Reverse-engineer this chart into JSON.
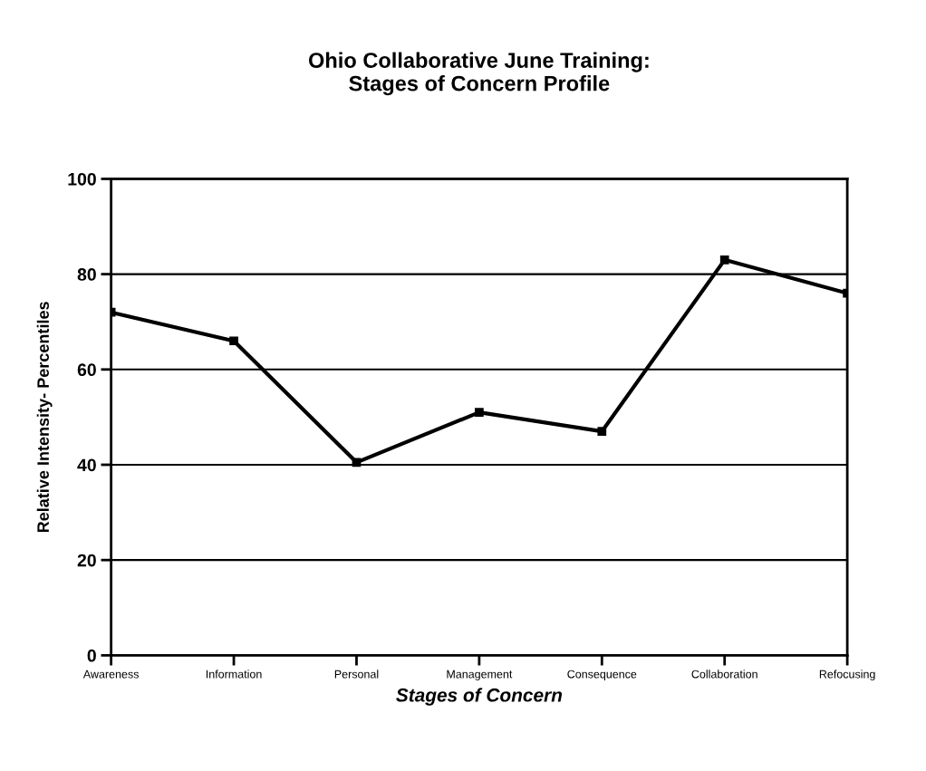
{
  "chart_data": {
    "type": "line",
    "title": "Ohio Collaborative June Training:\nStages of Concern Profile",
    "xlabel": "Stages of Concern",
    "ylabel": "Relative Intensity- Percentiles",
    "categories": [
      "Awareness",
      "Information",
      "Personal",
      "Management",
      "Consequence",
      "Collaboration",
      "Refocusing"
    ],
    "series": [
      {
        "color": "#000000",
        "values": [
          72,
          66,
          40.5,
          51,
          47,
          83,
          76
        ]
      }
    ],
    "ylim": [
      0,
      100
    ],
    "yticks": [
      0,
      20,
      40,
      60,
      80,
      100
    ],
    "grid": "y",
    "marker": "square",
    "line_style": "solid"
  }
}
